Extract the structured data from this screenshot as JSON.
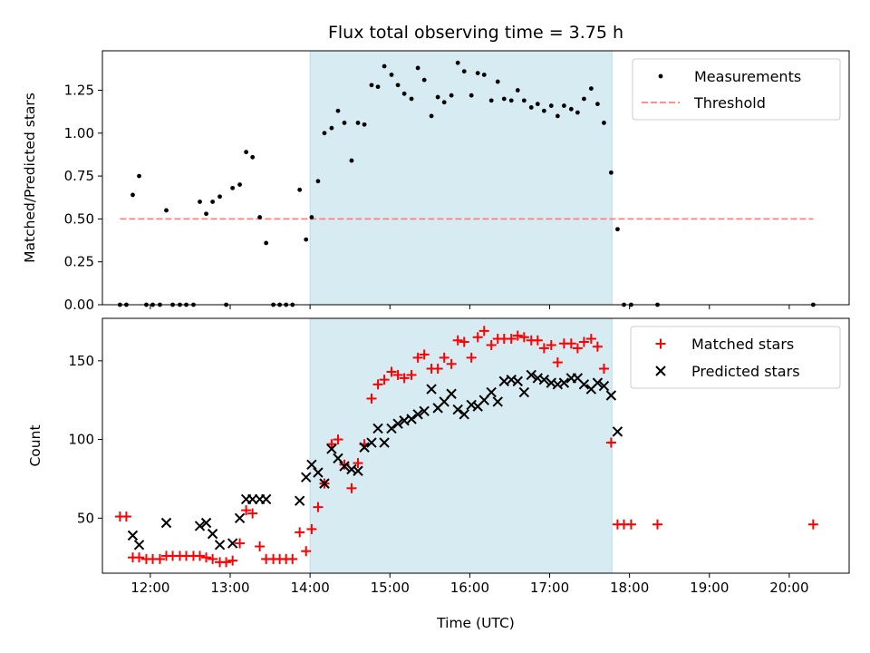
{
  "chart_data": [
    {
      "type": "scatter",
      "title": "Flux total observing time = 3.75 h",
      "xlabel": "",
      "ylabel": "Matched/Predicted stars",
      "xlim": [
        11.4,
        20.75
      ],
      "ylim": [
        0,
        1.48
      ],
      "xticks": [
        12,
        13,
        14,
        15,
        16,
        17,
        18,
        19,
        20
      ],
      "yticks": [
        0.0,
        0.25,
        0.5,
        0.75,
        1.0,
        1.25
      ],
      "ytick_labels": [
        "0.00",
        "0.25",
        "0.50",
        "0.75",
        "1.00",
        "1.25"
      ],
      "shaded_span": [
        14.0,
        17.78
      ],
      "legend": [
        "Measurements",
        "Threshold"
      ],
      "threshold": {
        "name": "Threshold",
        "value": 0.5,
        "x_range": [
          11.62,
          20.3
        ],
        "color": "#ff8080"
      },
      "series": [
        {
          "name": "Measurements",
          "color": "#000000",
          "points": [
            [
              11.62,
              0
            ],
            [
              11.7,
              0
            ],
            [
              11.78,
              0.64
            ],
            [
              11.86,
              0.75
            ],
            [
              11.95,
              0
            ],
            [
              12.03,
              0
            ],
            [
              12.12,
              0
            ],
            [
              12.2,
              0.55
            ],
            [
              12.28,
              0
            ],
            [
              12.37,
              0
            ],
            [
              12.45,
              0
            ],
            [
              12.54,
              0
            ],
            [
              12.62,
              0.6
            ],
            [
              12.7,
              0.53
            ],
            [
              12.78,
              0.6
            ],
            [
              12.87,
              0.63
            ],
            [
              12.95,
              0
            ],
            [
              13.03,
              0.68
            ],
            [
              13.12,
              0.7
            ],
            [
              13.2,
              0.89
            ],
            [
              13.28,
              0.86
            ],
            [
              13.37,
              0.51
            ],
            [
              13.45,
              0.36
            ],
            [
              13.54,
              0
            ],
            [
              13.62,
              0
            ],
            [
              13.7,
              0
            ],
            [
              13.78,
              0
            ],
            [
              13.87,
              0.67
            ],
            [
              13.95,
              0.38
            ],
            [
              14.02,
              0.51
            ],
            [
              14.1,
              0.72
            ],
            [
              14.18,
              1.0
            ],
            [
              14.27,
              1.03
            ],
            [
              14.35,
              1.13
            ],
            [
              14.43,
              1.06
            ],
            [
              14.52,
              0.84
            ],
            [
              14.6,
              1.06
            ],
            [
              14.68,
              1.05
            ],
            [
              14.77,
              1.28
            ],
            [
              14.85,
              1.27
            ],
            [
              14.93,
              1.39
            ],
            [
              15.02,
              1.34
            ],
            [
              15.1,
              1.28
            ],
            [
              15.18,
              1.23
            ],
            [
              15.27,
              1.2
            ],
            [
              15.35,
              1.38
            ],
            [
              15.43,
              1.31
            ],
            [
              15.52,
              1.1
            ],
            [
              15.6,
              1.21
            ],
            [
              15.68,
              1.18
            ],
            [
              15.77,
              1.22
            ],
            [
              15.85,
              1.41
            ],
            [
              15.93,
              1.36
            ],
            [
              16.02,
              1.22
            ],
            [
              16.1,
              1.35
            ],
            [
              16.18,
              1.34
            ],
            [
              16.27,
              1.19
            ],
            [
              16.35,
              1.3
            ],
            [
              16.43,
              1.2
            ],
            [
              16.52,
              1.19
            ],
            [
              16.6,
              1.25
            ],
            [
              16.68,
              1.19
            ],
            [
              16.77,
              1.15
            ],
            [
              16.85,
              1.17
            ],
            [
              16.93,
              1.13
            ],
            [
              17.02,
              1.16
            ],
            [
              17.1,
              1.1
            ],
            [
              17.18,
              1.16
            ],
            [
              17.27,
              1.14
            ],
            [
              17.35,
              1.12
            ],
            [
              17.43,
              1.2
            ],
            [
              17.52,
              1.26
            ],
            [
              17.6,
              1.17
            ],
            [
              17.68,
              1.06
            ],
            [
              17.77,
              0.77
            ],
            [
              17.85,
              0.44
            ],
            [
              17.93,
              0
            ],
            [
              18.02,
              0
            ],
            [
              18.35,
              0
            ],
            [
              20.3,
              0
            ]
          ]
        }
      ]
    },
    {
      "type": "scatter",
      "title": "",
      "xlabel": "Time (UTC)",
      "ylabel": "Count",
      "xlim": [
        11.4,
        20.75
      ],
      "ylim": [
        15,
        177
      ],
      "xticks": [
        12,
        13,
        14,
        15,
        16,
        17,
        18,
        19,
        20
      ],
      "xtick_labels": [
        "12:00",
        "13:00",
        "14:00",
        "15:00",
        "16:00",
        "17:00",
        "18:00",
        "19:00",
        "20:00"
      ],
      "yticks": [
        50,
        100,
        150
      ],
      "ytick_labels": [
        "50",
        "100",
        "150"
      ],
      "shaded_span": [
        14.0,
        17.78
      ],
      "legend": [
        "Matched stars",
        "Predicted stars"
      ],
      "series": [
        {
          "name": "Matched stars",
          "marker": "plus",
          "color": "#ff0000",
          "points": [
            [
              11.62,
              51
            ],
            [
              11.7,
              51
            ],
            [
              11.78,
              25
            ],
            [
              11.86,
              25
            ],
            [
              11.95,
              24
            ],
            [
              12.03,
              24
            ],
            [
              12.12,
              24
            ],
            [
              12.2,
              26
            ],
            [
              12.28,
              26
            ],
            [
              12.37,
              26
            ],
            [
              12.45,
              26
            ],
            [
              12.54,
              26
            ],
            [
              12.62,
              26
            ],
            [
              12.7,
              25
            ],
            [
              12.78,
              24
            ],
            [
              12.87,
              22
            ],
            [
              12.95,
              22
            ],
            [
              13.03,
              23
            ],
            [
              13.12,
              34
            ],
            [
              13.2,
              55
            ],
            [
              13.28,
              53
            ],
            [
              13.37,
              32
            ],
            [
              13.45,
              24
            ],
            [
              13.54,
              24
            ],
            [
              13.62,
              24
            ],
            [
              13.7,
              24
            ],
            [
              13.78,
              24
            ],
            [
              13.87,
              41
            ],
            [
              13.95,
              29
            ],
            [
              14.02,
              43
            ],
            [
              14.1,
              57
            ],
            [
              14.18,
              72
            ],
            [
              14.27,
              97
            ],
            [
              14.35,
              100
            ],
            [
              14.43,
              84
            ],
            [
              14.52,
              69
            ],
            [
              14.6,
              85
            ],
            [
              14.68,
              97
            ],
            [
              14.77,
              126
            ],
            [
              14.85,
              135
            ],
            [
              14.93,
              138
            ],
            [
              15.02,
              143
            ],
            [
              15.1,
              141
            ],
            [
              15.18,
              139
            ],
            [
              15.27,
              141
            ],
            [
              15.35,
              152
            ],
            [
              15.43,
              154
            ],
            [
              15.52,
              145
            ],
            [
              15.6,
              145
            ],
            [
              15.68,
              152
            ],
            [
              15.77,
              148
            ],
            [
              15.85,
              163
            ],
            [
              15.93,
              162
            ],
            [
              16.02,
              152
            ],
            [
              16.1,
              165
            ],
            [
              16.18,
              169
            ],
            [
              16.27,
              160
            ],
            [
              16.35,
              164
            ],
            [
              16.43,
              164
            ],
            [
              16.52,
              164
            ],
            [
              16.6,
              166
            ],
            [
              16.68,
              165
            ],
            [
              16.77,
              163
            ],
            [
              16.85,
              163
            ],
            [
              16.93,
              158
            ],
            [
              17.02,
              160
            ],
            [
              17.1,
              149
            ],
            [
              17.18,
              161
            ],
            [
              17.27,
              161
            ],
            [
              17.35,
              158
            ],
            [
              17.43,
              162
            ],
            [
              17.52,
              164
            ],
            [
              17.6,
              159
            ],
            [
              17.68,
              145
            ],
            [
              17.77,
              98
            ],
            [
              17.85,
              46
            ],
            [
              17.93,
              46
            ],
            [
              18.02,
              46
            ],
            [
              18.35,
              46
            ],
            [
              20.3,
              46
            ]
          ]
        },
        {
          "name": "Predicted stars",
          "marker": "x",
          "color": "#000000",
          "points": [
            [
              11.78,
              39
            ],
            [
              11.86,
              33
            ],
            [
              12.2,
              47
            ],
            [
              12.62,
              45
            ],
            [
              12.7,
              47
            ],
            [
              12.78,
              40
            ],
            [
              12.87,
              33
            ],
            [
              13.03,
              34
            ],
            [
              13.12,
              50
            ],
            [
              13.2,
              62
            ],
            [
              13.28,
              62
            ],
            [
              13.37,
              62
            ],
            [
              13.45,
              62
            ],
            [
              13.87,
              61
            ],
            [
              13.95,
              76
            ],
            [
              14.02,
              84
            ],
            [
              14.1,
              79
            ],
            [
              14.18,
              72
            ],
            [
              14.27,
              94
            ],
            [
              14.35,
              88
            ],
            [
              14.43,
              83
            ],
            [
              14.52,
              81
            ],
            [
              14.6,
              80
            ],
            [
              14.68,
              95
            ],
            [
              14.77,
              98
            ],
            [
              14.85,
              107
            ],
            [
              14.93,
              98
            ],
            [
              15.02,
              107
            ],
            [
              15.1,
              110
            ],
            [
              15.18,
              112
            ],
            [
              15.27,
              113
            ],
            [
              15.35,
              116
            ],
            [
              15.43,
              118
            ],
            [
              15.52,
              132
            ],
            [
              15.6,
              120
            ],
            [
              15.68,
              124
            ],
            [
              15.77,
              129
            ],
            [
              15.85,
              119
            ],
            [
              15.93,
              116
            ],
            [
              16.02,
              122
            ],
            [
              16.1,
              121
            ],
            [
              16.18,
              125
            ],
            [
              16.27,
              130
            ],
            [
              16.35,
              124
            ],
            [
              16.43,
              137
            ],
            [
              16.52,
              138
            ],
            [
              16.6,
              137
            ],
            [
              16.68,
              130
            ],
            [
              16.77,
              141
            ],
            [
              16.85,
              139
            ],
            [
              16.93,
              138
            ],
            [
              17.02,
              136
            ],
            [
              17.1,
              135
            ],
            [
              17.18,
              136
            ],
            [
              17.27,
              139
            ],
            [
              17.35,
              139
            ],
            [
              17.43,
              135
            ],
            [
              17.52,
              132
            ],
            [
              17.6,
              136
            ],
            [
              17.68,
              134
            ],
            [
              17.77,
              128
            ],
            [
              17.85,
              105
            ]
          ]
        }
      ]
    }
  ],
  "colors": {
    "shade": "#add8e6",
    "shade_alpha": 0.5,
    "threshold": "#ff8080",
    "matched": "#ff0000",
    "predicted": "#000000",
    "measurement": "#000000"
  }
}
